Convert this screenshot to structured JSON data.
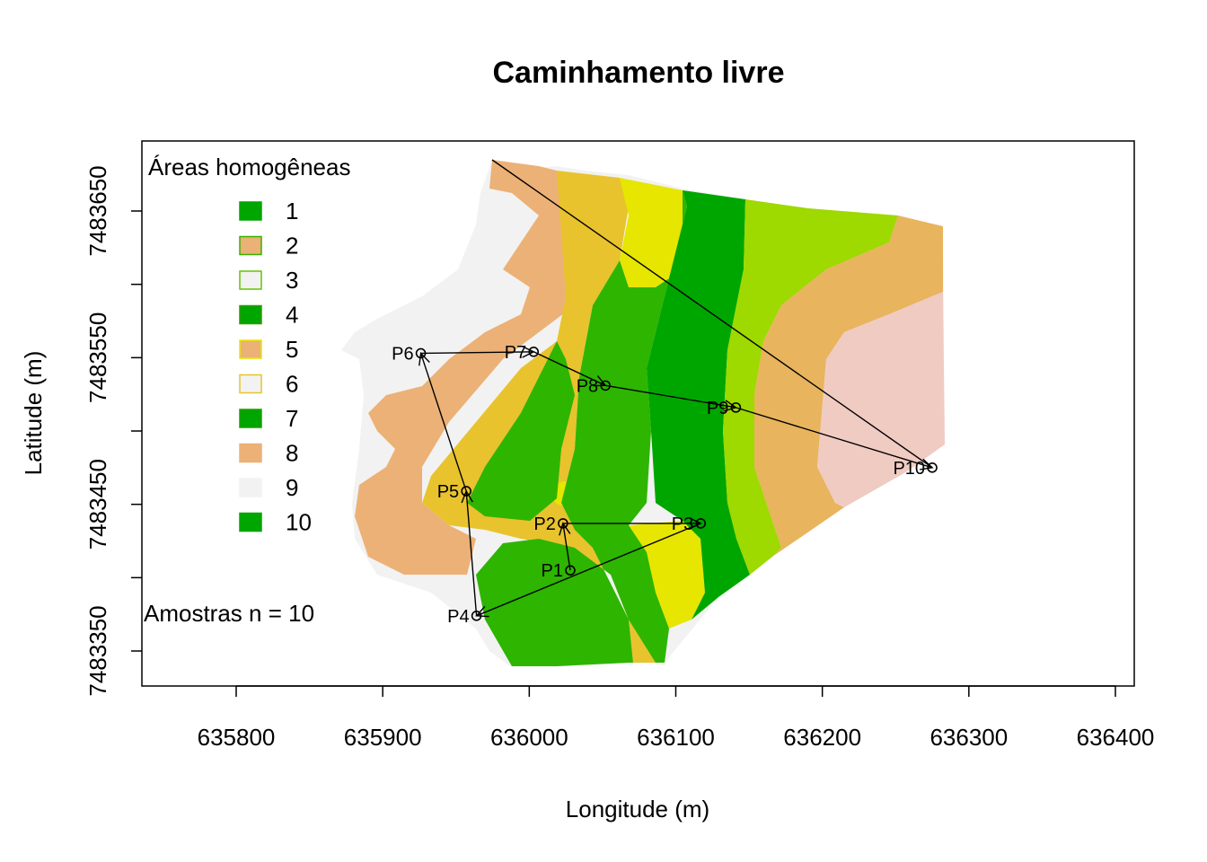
{
  "title": "Caminhamento livre",
  "xlabel": "Longitude (m)",
  "ylabel": "Latitude (m)",
  "x_ticks": [
    "635800",
    "635900",
    "636000",
    "636100",
    "636200",
    "636300",
    "636400"
  ],
  "y_ticks": [
    "7483350",
    "7483450",
    "7483550",
    "7483650"
  ],
  "legend": {
    "title": "Áreas homogêneas",
    "items": [
      {
        "label": "1",
        "fill": "#00A600",
        "border": "#00A600"
      },
      {
        "label": "2",
        "fill": "#ECB176",
        "border": "#3AB000"
      },
      {
        "label": "3",
        "fill": "#F2F2F2",
        "border": "#63C600"
      },
      {
        "label": "4",
        "fill": "#00A600",
        "border": "#2D9A00"
      },
      {
        "label": "5",
        "fill": "#ECB176",
        "border": "#E6E600"
      },
      {
        "label": "6",
        "fill": "#F2F2F2",
        "border": "#E8C32E"
      },
      {
        "label": "7",
        "fill": "#00A600",
        "border": "#1F9E00"
      },
      {
        "label": "8",
        "fill": "#ECB176",
        "border": "#ECB176"
      },
      {
        "label": "9",
        "fill": "#F2F2F2",
        "border": "#F2F2F2"
      },
      {
        "label": "10",
        "fill": "#00A600",
        "border": "#00A600"
      }
    ]
  },
  "sample_note": "Amostras n = 10",
  "points": [
    {
      "label": "P1",
      "lon": 636028,
      "lat": 7483405
    },
    {
      "label": "P2",
      "lon": 636023,
      "lat": 7483437
    },
    {
      "label": "P3",
      "lon": 636117,
      "lat": 7483437
    },
    {
      "label": "P4",
      "lon": 635964,
      "lat": 7483374
    },
    {
      "label": "P5",
      "lon": 635957,
      "lat": 7483459
    },
    {
      "label": "P6",
      "lon": 635926,
      "lat": 7483553
    },
    {
      "label": "P7",
      "lon": 636003,
      "lat": 7483554
    },
    {
      "label": "P8",
      "lon": 636052,
      "lat": 7483531
    },
    {
      "label": "P9",
      "lon": 636141,
      "lat": 7483516
    },
    {
      "label": "P10",
      "lon": 636275,
      "lat": 7483475
    }
  ],
  "route": [
    "P1",
    "P2",
    "P3",
    "P4",
    "P5",
    "P6",
    "P7",
    "P8",
    "P9",
    "P10"
  ],
  "colors": {
    "zone_green": "#00A600",
    "zone_midgreen": "#2DB500",
    "zone_lightgreen": "#9ED900",
    "zone_yellow": "#E6E600",
    "zone_gold": "#E8C32E",
    "zone_orange": "#E8B45E",
    "zone_tan": "#ECB176",
    "zone_pink": "#F0CBC2",
    "zone_gray": "#F2F2F2"
  }
}
